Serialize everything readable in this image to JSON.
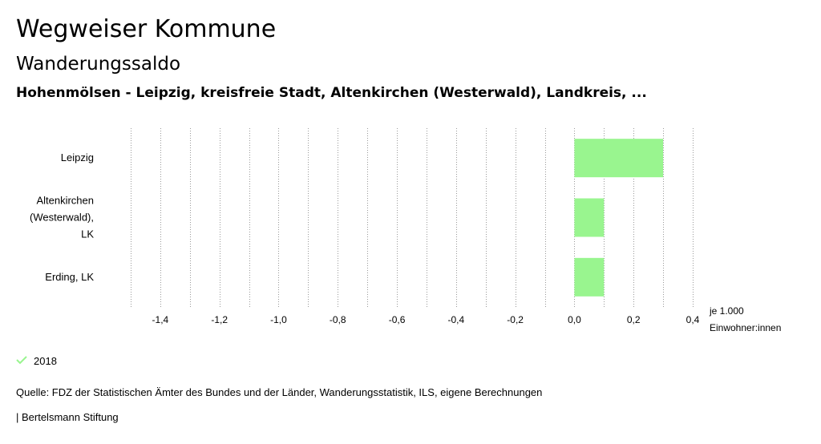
{
  "header": {
    "title": "Wegweiser Kommune",
    "subtitle": "Wanderungssaldo",
    "regions": "Hohenmölsen - Leipzig, kreisfreie Stadt, Altenkirchen (Westerwald), Landkreis, ..."
  },
  "chart_data": {
    "type": "bar",
    "orientation": "horizontal",
    "categories": [
      [
        "Leipzig"
      ],
      [
        "Altenkirchen",
        "(Westerwald),",
        "LK"
      ],
      [
        "Erding, LK"
      ]
    ],
    "series": [
      {
        "name": "2018",
        "values": [
          0.3,
          0.1,
          0.1
        ]
      }
    ],
    "xlim": [
      -1.5,
      0.4
    ],
    "ticks": [
      -1.4,
      -1.2,
      -1.0,
      -0.8,
      -0.6,
      -0.4,
      -0.2,
      0.0,
      0.2,
      0.4
    ],
    "tick_labels": [
      "-1,4",
      "-1,2",
      "-1,0",
      "-0,8",
      "-0,6",
      "-0,4",
      "-0,2",
      "0,0",
      "0,2",
      "0,4"
    ],
    "minor_ticks": [
      -1.5,
      -1.3,
      -1.1,
      -0.9,
      -0.7,
      -0.5,
      -0.3,
      -0.1,
      0.1,
      0.3
    ],
    "xlabel": [
      "je 1.000",
      "Einwohner:innen"
    ],
    "grid": true,
    "colors": {
      "bar": "#99f58f",
      "grid": "#999999"
    }
  },
  "legend": {
    "label": "2018",
    "color": "#99f58f"
  },
  "footer": {
    "source": "Quelle: FDZ der Statistischen Ämter des Bundes und der Länder, Wanderungsstatistik, ILS, eigene Berechnungen",
    "publisher": "| Bertelsmann Stiftung"
  }
}
